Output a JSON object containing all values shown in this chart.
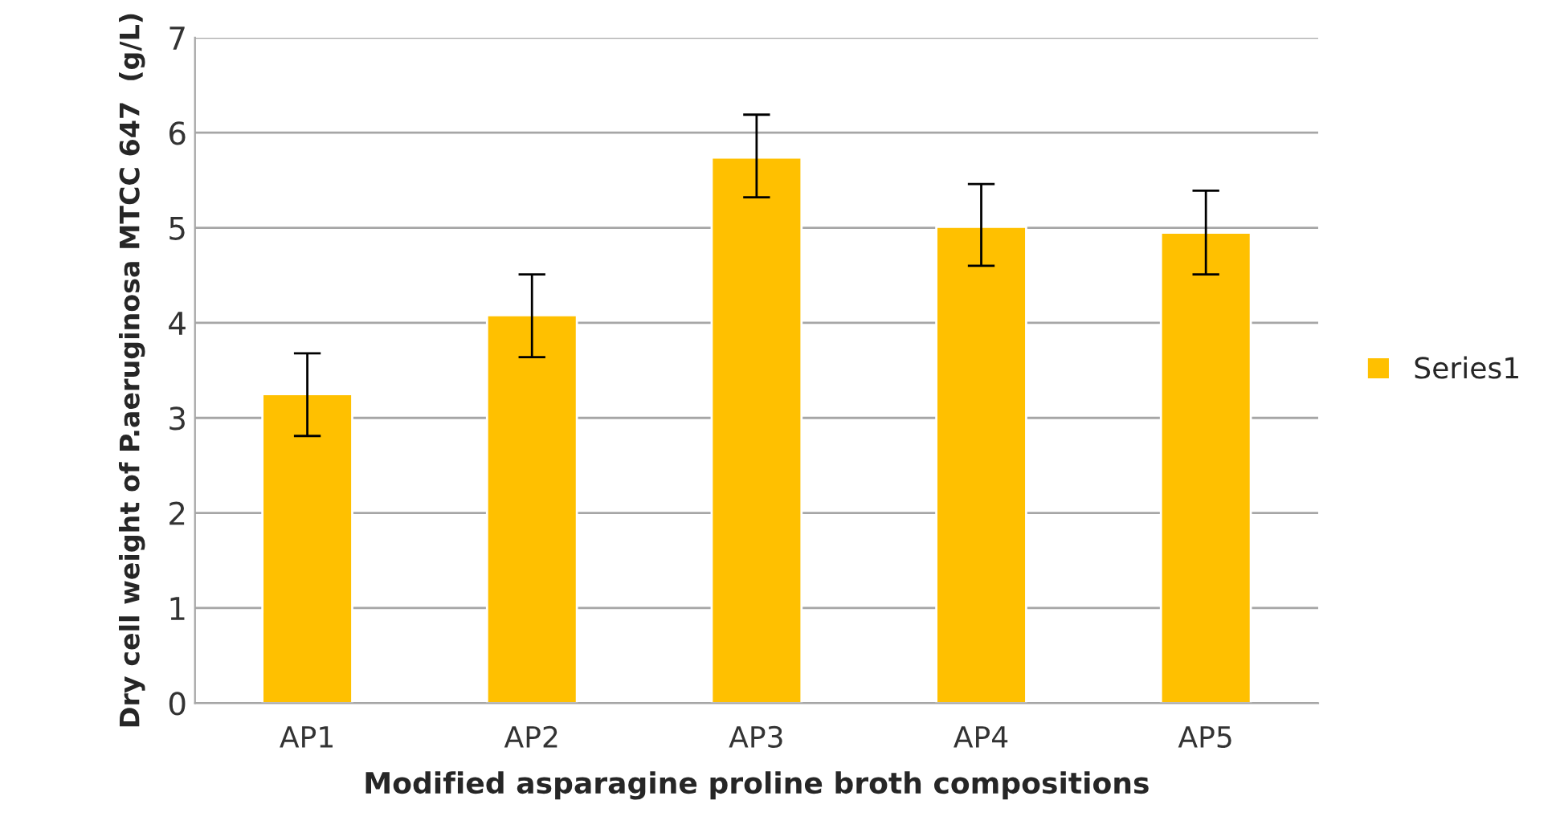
{
  "chart_data": {
    "type": "bar",
    "categories": [
      "AP1",
      "AP2",
      "AP3",
      "AP4",
      "AP5"
    ],
    "series": [
      {
        "name": "Series1",
        "color": "#ffc000",
        "values": [
          3.25,
          4.08,
          5.74,
          5.01,
          4.95
        ],
        "errors": [
          [
            2.81,
            3.68
          ],
          [
            3.64,
            4.51
          ],
          [
            5.32,
            6.19
          ],
          [
            4.6,
            5.46
          ],
          [
            4.51,
            5.39
          ]
        ]
      }
    ],
    "xlabel": "Modified asparagine proline broth compositions",
    "ylabel": "Dry cell weight of P.aeruginosa MTCC 647  (g/L)",
    "ylim": [
      0,
      7
    ],
    "yticks": [
      0,
      1,
      2,
      3,
      4,
      5,
      6,
      7
    ],
    "grid": "y",
    "legend": "right"
  }
}
